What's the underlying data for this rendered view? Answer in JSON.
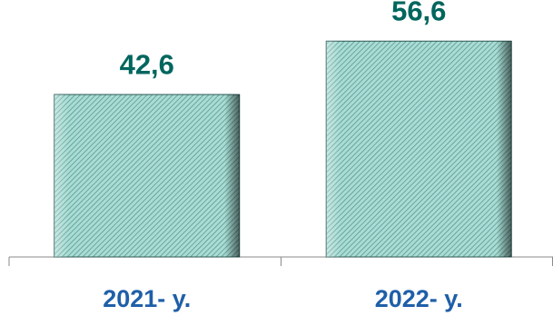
{
  "chart_data": {
    "type": "bar",
    "categories": [
      "2021- y.",
      "2022- y."
    ],
    "values": [
      42.6,
      56.6
    ],
    "value_labels": [
      "42,6",
      "56,6"
    ],
    "color": "#8fcfc6",
    "label_color": "#00665e",
    "category_color": "#1f5fa8"
  }
}
